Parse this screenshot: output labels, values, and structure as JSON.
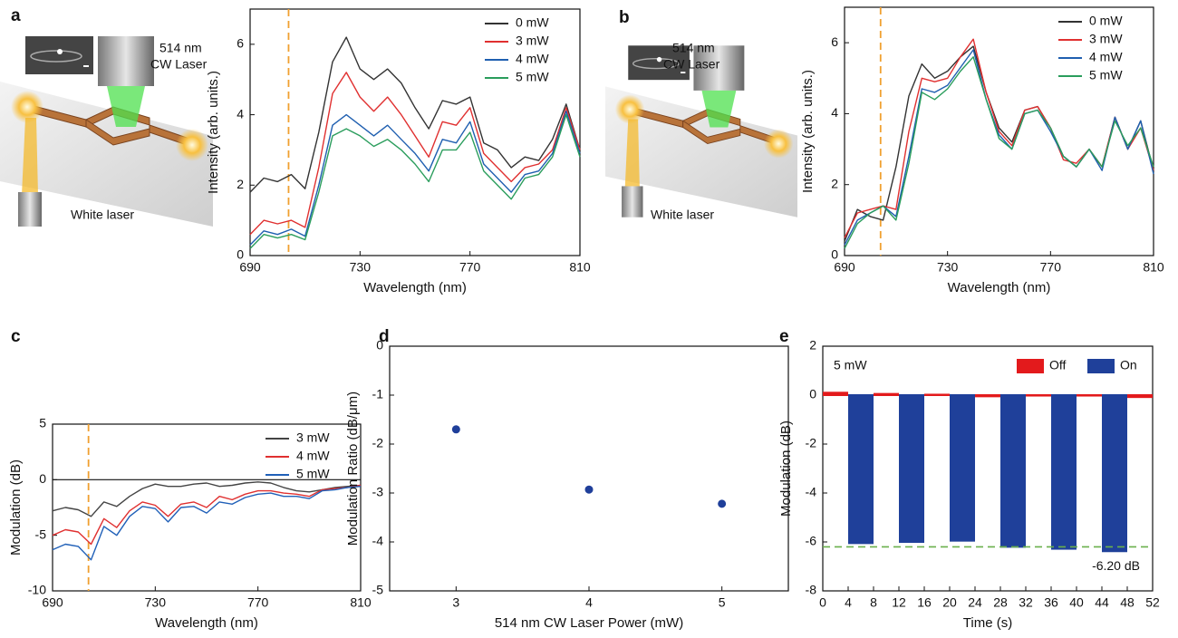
{
  "illustrations": [
    {
      "laser_label": [
        "514 nm",
        "CW Laser"
      ],
      "white_label": "White laser"
    },
    {
      "laser_label": [
        "514 nm",
        "CW Laser"
      ],
      "white_label": "White laser"
    }
  ],
  "chart_data": [
    {
      "type": "line",
      "panel": "a",
      "xlabel": "Wavelength (nm)",
      "ylabel": "Intensity (arb. units.)",
      "x": [
        690,
        695,
        700,
        705,
        710,
        715,
        720,
        725,
        730,
        735,
        740,
        745,
        750,
        755,
        760,
        765,
        770,
        775,
        780,
        785,
        790,
        795,
        800,
        805,
        810
      ],
      "series": [
        {
          "name": "0 mW",
          "color": "#333333",
          "values": [
            1.8,
            2.2,
            2.1,
            2.3,
            1.9,
            3.5,
            5.5,
            6.2,
            5.3,
            5.0,
            5.3,
            4.9,
            4.2,
            3.6,
            4.4,
            4.3,
            4.5,
            3.2,
            3.0,
            2.5,
            2.8,
            2.7,
            3.3,
            4.3,
            3.0
          ]
        },
        {
          "name": "3 mW",
          "color": "#e03030",
          "values": [
            0.6,
            1.0,
            0.9,
            1.0,
            0.8,
            2.5,
            4.6,
            5.2,
            4.5,
            4.1,
            4.5,
            4.0,
            3.4,
            2.8,
            3.8,
            3.7,
            4.2,
            2.9,
            2.5,
            2.1,
            2.5,
            2.6,
            3.0,
            4.2,
            3.0
          ]
        },
        {
          "name": "4 mW",
          "color": "#1f5fb0",
          "values": [
            0.3,
            0.7,
            0.6,
            0.75,
            0.55,
            2.0,
            3.7,
            4.0,
            3.7,
            3.4,
            3.7,
            3.3,
            2.9,
            2.4,
            3.3,
            3.2,
            3.8,
            2.6,
            2.2,
            1.8,
            2.3,
            2.4,
            2.9,
            4.1,
            2.9
          ]
        },
        {
          "name": "5 mW",
          "color": "#2a9d5c",
          "values": [
            0.2,
            0.6,
            0.5,
            0.6,
            0.45,
            1.8,
            3.4,
            3.6,
            3.4,
            3.1,
            3.3,
            3.0,
            2.6,
            2.1,
            3.0,
            3.0,
            3.5,
            2.4,
            2.0,
            1.6,
            2.2,
            2.3,
            2.8,
            4.0,
            2.8
          ]
        }
      ],
      "xlim": [
        690,
        810
      ],
      "ylim": [
        0,
        7
      ],
      "xticks": [
        690,
        730,
        770,
        810
      ],
      "yticks": [
        0,
        2,
        4,
        6
      ],
      "vline": {
        "value": 704,
        "color": "#f0a030"
      },
      "legend": "upper right"
    },
    {
      "type": "line",
      "panel": "b",
      "xlabel": "Wavelength (nm)",
      "ylabel": "Intensity (arb. units.)",
      "x": [
        690,
        695,
        700,
        705,
        710,
        715,
        720,
        725,
        730,
        735,
        740,
        745,
        750,
        755,
        760,
        765,
        770,
        775,
        780,
        785,
        790,
        795,
        800,
        805,
        810
      ],
      "series": [
        {
          "name": "0 mW",
          "color": "#333333",
          "values": [
            0.4,
            1.3,
            1.1,
            1.0,
            2.5,
            4.5,
            5.4,
            5.0,
            5.2,
            5.6,
            5.9,
            4.6,
            3.6,
            3.2,
            4.1,
            4.2,
            3.6,
            2.8,
            2.5,
            3.0,
            2.5,
            3.9,
            3.0,
            3.8,
            2.4
          ]
        },
        {
          "name": "3 mW",
          "color": "#e03030",
          "values": [
            0.5,
            1.2,
            1.3,
            1.4,
            1.3,
            3.5,
            5.0,
            4.9,
            5.0,
            5.6,
            6.1,
            4.6,
            3.5,
            3.1,
            4.1,
            4.2,
            3.6,
            2.7,
            2.6,
            3.0,
            2.5,
            3.9,
            3.0,
            3.6,
            2.4
          ]
        },
        {
          "name": "4 mW",
          "color": "#1f5fb0",
          "values": [
            0.3,
            1.0,
            1.2,
            1.4,
            1.1,
            2.8,
            4.7,
            4.6,
            4.8,
            5.3,
            5.8,
            4.4,
            3.4,
            3.0,
            4.0,
            4.1,
            3.5,
            2.8,
            2.5,
            3.0,
            2.4,
            3.9,
            3.0,
            3.8,
            2.3
          ]
        },
        {
          "name": "5 mW",
          "color": "#2a9d5c",
          "values": [
            0.2,
            0.9,
            1.2,
            1.4,
            1.0,
            2.6,
            4.6,
            4.4,
            4.7,
            5.2,
            5.6,
            4.4,
            3.3,
            3.0,
            4.0,
            4.1,
            3.6,
            2.8,
            2.5,
            3.0,
            2.5,
            3.8,
            3.1,
            3.6,
            2.5
          ]
        }
      ],
      "xlim": [
        690,
        810
      ],
      "ylim": [
        0,
        7
      ],
      "xticks": [
        690,
        730,
        770,
        810
      ],
      "yticks": [
        0,
        2,
        4,
        6
      ],
      "vline": {
        "value": 704,
        "color": "#f0a030"
      },
      "legend": "upper right"
    },
    {
      "type": "line",
      "panel": "c",
      "xlabel": "Wavelength (nm)",
      "ylabel": "Modulation (dB)",
      "x": [
        690,
        695,
        700,
        705,
        710,
        715,
        720,
        725,
        730,
        735,
        740,
        745,
        750,
        755,
        760,
        765,
        770,
        775,
        780,
        785,
        790,
        795,
        800,
        805,
        810
      ],
      "series": [
        {
          "name": "3 mW",
          "color": "#444444",
          "values": [
            -2.8,
            -2.5,
            -2.7,
            -3.3,
            -2.0,
            -2.4,
            -1.5,
            -0.8,
            -0.4,
            -0.6,
            -0.6,
            -0.4,
            -0.3,
            -0.6,
            -0.5,
            -0.3,
            -0.2,
            -0.3,
            -0.7,
            -1.0,
            -1.1,
            -0.9,
            -0.7,
            -0.6,
            -0.5
          ]
        },
        {
          "name": "4 mW",
          "color": "#e03030",
          "values": [
            -5.0,
            -4.5,
            -4.7,
            -5.8,
            -3.5,
            -4.3,
            -2.8,
            -2.0,
            -2.3,
            -3.3,
            -2.2,
            -2.0,
            -2.5,
            -1.5,
            -1.8,
            -1.3,
            -1.0,
            -1.0,
            -1.2,
            -1.3,
            -1.5,
            -0.9,
            -0.8,
            -0.7,
            -0.5
          ]
        },
        {
          "name": "5 mW",
          "color": "#2060b8",
          "values": [
            -6.3,
            -5.8,
            -6.0,
            -7.2,
            -4.2,
            -5.0,
            -3.3,
            -2.4,
            -2.6,
            -3.8,
            -2.5,
            -2.4,
            -3.0,
            -2.0,
            -2.2,
            -1.6,
            -1.3,
            -1.2,
            -1.5,
            -1.5,
            -1.7,
            -1.0,
            -0.9,
            -0.7,
            -0.6
          ]
        }
      ],
      "xlim": [
        690,
        810
      ],
      "ylim": [
        -10,
        5
      ],
      "xticks": [
        690,
        730,
        770,
        810
      ],
      "yticks": [
        -10,
        -5,
        0,
        5
      ],
      "vline": {
        "value": 704,
        "color": "#f0a030"
      },
      "zero_line": true,
      "legend": "upper right"
    },
    {
      "type": "scatter",
      "panel": "d",
      "xlabel": "514 nm CW Laser Power (mW)",
      "ylabel": "Modulation Ratio (dB/μm)",
      "x": [
        3,
        4,
        5
      ],
      "values": [
        -1.7,
        -2.93,
        -3.22
      ],
      "color": "#1f3f9a",
      "xlim": [
        2.5,
        5.5
      ],
      "ylim": [
        -5,
        0
      ],
      "xticks": [
        3,
        4,
        5
      ],
      "yticks": [
        0,
        -1,
        -2,
        -3,
        -4,
        -5
      ]
    },
    {
      "type": "bar",
      "panel": "e",
      "xlabel": "Time (s)",
      "ylabel": "Modulation (dB)",
      "series": [
        {
          "name": "Off",
          "color": "#e31a1c",
          "intervals": [
            [
              0,
              4
            ],
            [
              8,
              12
            ],
            [
              16,
              20
            ],
            [
              24,
              28
            ],
            [
              32,
              36
            ],
            [
              40,
              44
            ],
            [
              48,
              52
            ]
          ],
          "values": [
            0.1,
            0.05,
            0.02,
            -0.05,
            -0.02,
            -0.02,
            -0.08
          ]
        },
        {
          "name": "On",
          "color": "#1f409a",
          "intervals": [
            [
              4,
              8
            ],
            [
              12,
              16
            ],
            [
              20,
              24
            ],
            [
              28,
              32
            ],
            [
              36,
              40
            ],
            [
              44,
              48
            ]
          ],
          "values": [
            -6.05,
            -6.0,
            -5.95,
            -6.2,
            -6.28,
            -6.38
          ]
        }
      ],
      "xlim": [
        0,
        52
      ],
      "ylim": [
        -8,
        2
      ],
      "xticks": [
        0,
        4,
        8,
        12,
        16,
        20,
        24,
        28,
        32,
        36,
        40,
        44,
        48,
        52
      ],
      "yticks": [
        2,
        0,
        -2,
        -4,
        -6,
        -8
      ],
      "annotation": "5 mW",
      "hline": {
        "value": -6.2,
        "label": "-6.20 dB",
        "color": "#6ab04c"
      },
      "legend": "upper right"
    }
  ]
}
